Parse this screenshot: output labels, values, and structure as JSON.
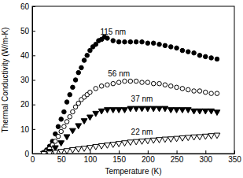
{
  "chart_data": {
    "type": "scatter",
    "x_label": "Temperature (K)",
    "y_label": "Thermal Conductivity (W/m-K)",
    "xlim": [
      0,
      350
    ],
    "xticks": [
      0,
      50,
      100,
      150,
      200,
      250,
      300,
      350
    ],
    "ylim": [
      0,
      60
    ],
    "yticks": [
      0,
      10,
      20,
      30,
      40,
      50,
      60
    ],
    "grid": false,
    "series": [
      {
        "name": "115 nm",
        "color": "#000000",
        "marker": "circle",
        "x": [
          20,
          25,
          30,
          35,
          40,
          45,
          50,
          55,
          60,
          65,
          70,
          75,
          80,
          85,
          90,
          95,
          100,
          105,
          110,
          115,
          120,
          125,
          130,
          140,
          150,
          160,
          170,
          180,
          190,
          200,
          210,
          220,
          230,
          240,
          250,
          260,
          270,
          280,
          290,
          300,
          310,
          320
        ],
        "values": [
          0.5,
          1.5,
          3,
          5,
          8,
          11,
          14,
          17,
          21,
          24,
          27,
          30,
          33,
          35,
          38,
          40,
          42,
          43.5,
          44.5,
          46,
          46.5,
          47.5,
          47,
          46,
          45.5,
          45.5,
          45.5,
          45.5,
          45.5,
          45,
          45,
          44.5,
          44,
          43.5,
          43,
          42,
          41.5,
          41,
          40,
          39.5,
          39,
          38.5
        ]
      },
      {
        "name": "56 nm",
        "color": "#000000",
        "marker": "circle-open",
        "x": [
          20,
          25,
          30,
          35,
          40,
          45,
          50,
          55,
          60,
          65,
          70,
          75,
          80,
          85,
          90,
          95,
          100,
          110,
          120,
          130,
          140,
          150,
          160,
          170,
          180,
          190,
          200,
          210,
          220,
          230,
          240,
          250,
          260,
          270,
          280,
          290,
          300,
          310,
          320
        ],
        "values": [
          0.3,
          1,
          2,
          3.5,
          5,
          7,
          9,
          11,
          13,
          15,
          17,
          19,
          20.5,
          22,
          23,
          24,
          25,
          26.5,
          27.5,
          28,
          28.5,
          29,
          29.5,
          29.5,
          29.5,
          29,
          29,
          28.5,
          28.5,
          28,
          27.5,
          27,
          26.5,
          26,
          25.5,
          25.5,
          25,
          24.5,
          24.5
        ]
      },
      {
        "name": "37 nm",
        "color": "#000000",
        "marker": "triangle-down",
        "x": [
          20,
          30,
          40,
          50,
          60,
          70,
          80,
          90,
          100,
          110,
          120,
          130,
          140,
          150,
          160,
          170,
          180,
          190,
          200,
          210,
          220,
          230,
          240,
          250,
          260,
          270,
          280,
          290,
          300,
          310,
          320
        ],
        "values": [
          0.2,
          1,
          2.5,
          4.5,
          7,
          9.5,
          11.5,
          13.5,
          15,
          16.5,
          17.5,
          18,
          18,
          18,
          18,
          18.5,
          18.5,
          18.5,
          18.5,
          18.5,
          18.5,
          18.5,
          18,
          18,
          18,
          18,
          17.5,
          17.5,
          17.5,
          17.5,
          17
        ]
      },
      {
        "name": "22 nm",
        "color": "#000000",
        "marker": "triangle-down-open",
        "x": [
          20,
          30,
          40,
          50,
          60,
          70,
          80,
          90,
          100,
          110,
          120,
          130,
          140,
          150,
          160,
          170,
          180,
          190,
          200,
          210,
          220,
          230,
          240,
          250,
          260,
          270,
          280,
          290,
          300,
          310,
          320
        ],
        "values": [
          0.1,
          0.3,
          0.6,
          1,
          1.3,
          1.7,
          2,
          2.3,
          2.6,
          3,
          3.3,
          3.6,
          3.9,
          4.2,
          4.5,
          4.8,
          5,
          5.2,
          5.4,
          5.6,
          5.8,
          6,
          6.1,
          6.3,
          6.5,
          6.7,
          6.9,
          7,
          7.2,
          7.4,
          7.6
        ]
      }
    ]
  }
}
